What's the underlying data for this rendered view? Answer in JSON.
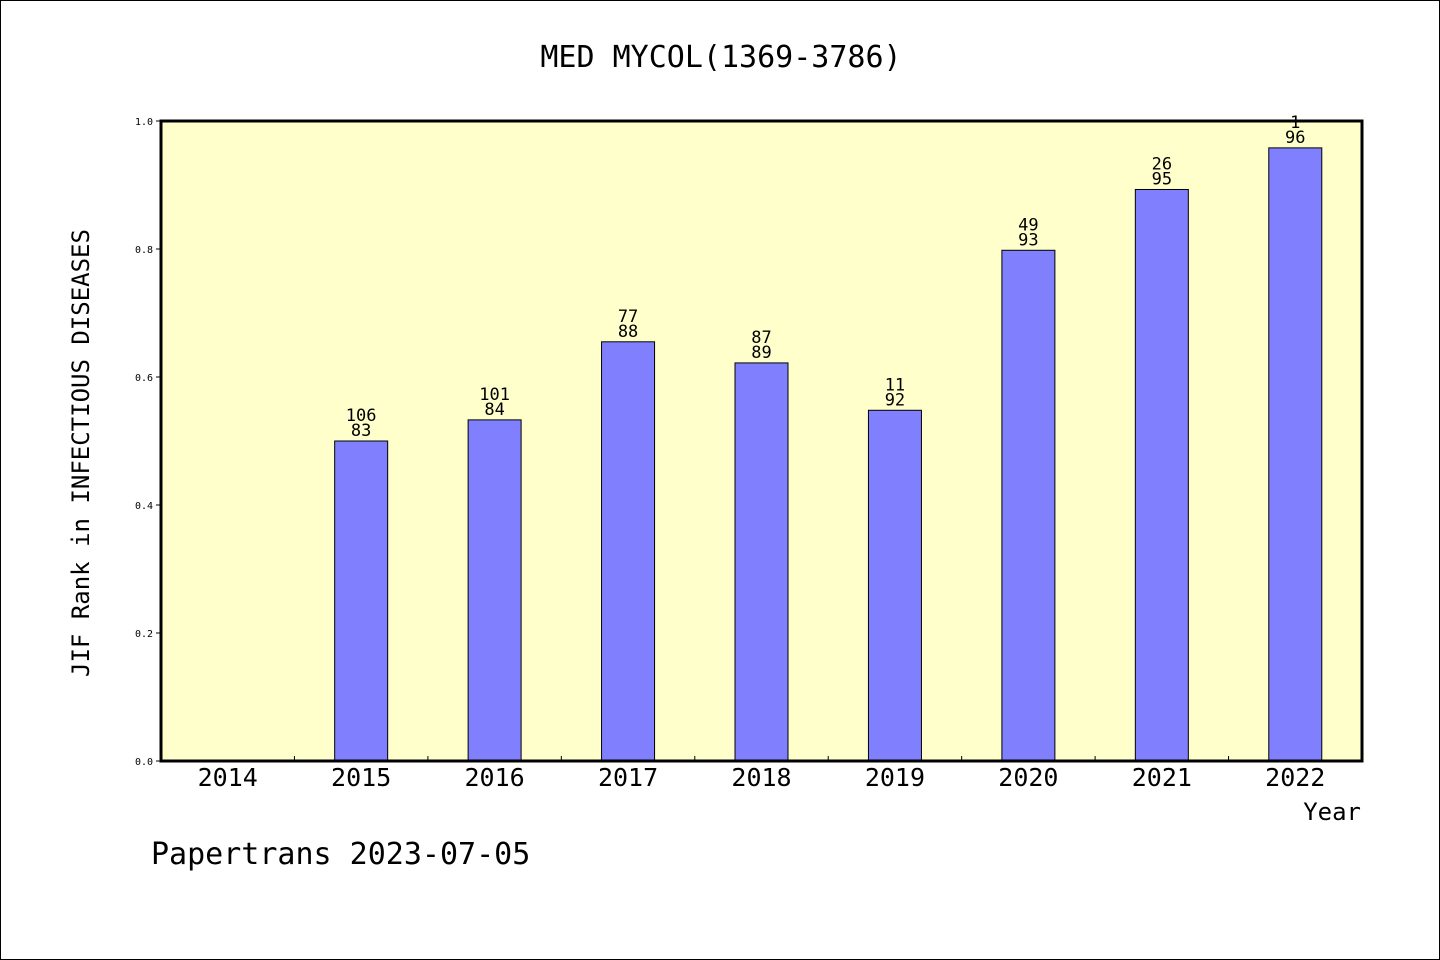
{
  "chart_data": {
    "type": "bar",
    "title": "MED MYCOL(1369-3786)",
    "xlabel": "Year",
    "ylabel": "JIF Rank in INFECTIOUS DISEASES",
    "categories": [
      "2014",
      "2015",
      "2016",
      "2017",
      "2018",
      "2019",
      "2020",
      "2021",
      "2022"
    ],
    "values": [
      null,
      0.5,
      0.533,
      0.655,
      0.622,
      0.548,
      0.798,
      0.893,
      0.958
    ],
    "bar_labels": [
      null,
      [
        "106",
        "83"
      ],
      [
        "101",
        "84"
      ],
      [
        "77",
        "88"
      ],
      [
        "87",
        "89"
      ],
      [
        "11",
        "92"
      ],
      [
        "49",
        "93"
      ],
      [
        "26",
        "95"
      ],
      [
        "1",
        "96"
      ]
    ],
    "yticks": [
      "0.0",
      "0.2",
      "0.4",
      "0.6",
      "0.8",
      "1.0"
    ],
    "ylim": [
      0,
      1
    ],
    "grid": false,
    "colors": {
      "plot_background": "#ffffcc",
      "bar_fill": "#8080ff",
      "bar_stroke": "#000000"
    }
  },
  "footer": "Papertrans 2023-07-05"
}
